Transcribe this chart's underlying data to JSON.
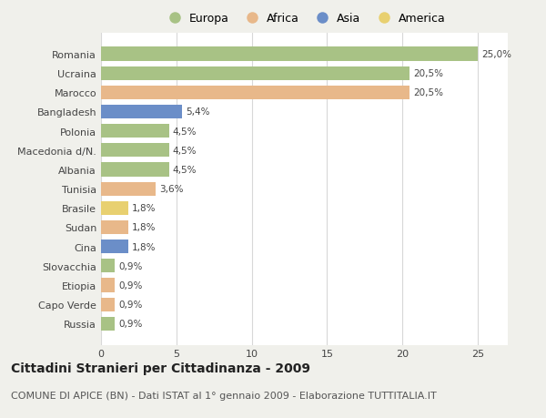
{
  "categories": [
    "Russia",
    "Capo Verde",
    "Etiopia",
    "Slovacchia",
    "Cina",
    "Sudan",
    "Brasile",
    "Tunisia",
    "Albania",
    "Macedonia d/N.",
    "Polonia",
    "Bangladesh",
    "Marocco",
    "Ucraina",
    "Romania"
  ],
  "values": [
    0.9,
    0.9,
    0.9,
    0.9,
    1.8,
    1.8,
    1.8,
    3.6,
    4.5,
    4.5,
    4.5,
    5.4,
    20.5,
    20.5,
    25.0
  ],
  "labels": [
    "0,9%",
    "0,9%",
    "0,9%",
    "0,9%",
    "1,8%",
    "1,8%",
    "1,8%",
    "3,6%",
    "4,5%",
    "4,5%",
    "4,5%",
    "5,4%",
    "20,5%",
    "20,5%",
    "25,0%"
  ],
  "continent": [
    "Europa",
    "Africa",
    "Africa",
    "Europa",
    "Asia",
    "Africa",
    "America",
    "Africa",
    "Europa",
    "Europa",
    "Europa",
    "Asia",
    "Africa",
    "Europa",
    "Europa"
  ],
  "colors": {
    "Europa": "#a8c285",
    "Africa": "#e8b88a",
    "Asia": "#6b8ec8",
    "America": "#e8d070"
  },
  "legend_order": [
    "Europa",
    "Africa",
    "Asia",
    "America"
  ],
  "title": "Cittadini Stranieri per Cittadinanza - 2009",
  "subtitle": "COMUNE DI APICE (BN) - Dati ISTAT al 1° gennaio 2009 - Elaborazione TUTTITALIA.IT",
  "xlim": [
    0,
    27
  ],
  "xticks": [
    0,
    5,
    10,
    15,
    20,
    25
  ],
  "background_color": "#f0f0eb",
  "bar_bg_color": "#ffffff",
  "grid_color": "#d8d8d8",
  "title_fontsize": 10,
  "subtitle_fontsize": 8,
  "label_fontsize": 7.5,
  "tick_fontsize": 8,
  "legend_fontsize": 9
}
